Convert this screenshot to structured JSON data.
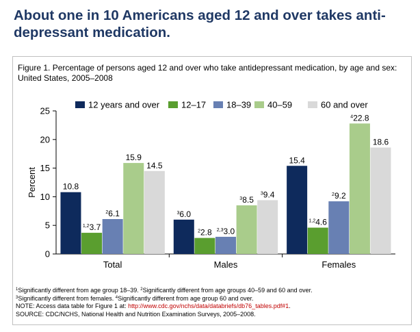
{
  "headline": "About one in 10 Americans aged 12 and over takes anti-depressant medication.",
  "caption": "Figure 1. Percentage of persons aged 12 and over who take antidepressant medication, by age and sex: United States, 2005–2008",
  "chart_data": {
    "type": "bar",
    "title": "Figure 1. Percentage of persons aged 12 and over who take antidepressant medication, by age and sex: United States, 2005–2008",
    "xlabel": "",
    "ylabel": "Percent",
    "ylim": [
      0,
      25
    ],
    "yticks": [
      0,
      5,
      10,
      15,
      20,
      25
    ],
    "grid": false,
    "legend_position": "top",
    "categories": [
      "Total",
      "Males",
      "Females"
    ],
    "series": [
      {
        "name": "12 years and over",
        "color": "#0e2a5c",
        "values": [
          10.8,
          6.0,
          15.4
        ],
        "labels": [
          "10.8",
          "6.0",
          "15.4"
        ],
        "marks": [
          "",
          "3",
          ""
        ]
      },
      {
        "name": "12–17",
        "color": "#5a9e2f",
        "values": [
          3.7,
          2.8,
          4.6
        ],
        "labels": [
          "3.7",
          "2.8",
          "4.6"
        ],
        "marks": [
          "1,2",
          "2",
          "1,2"
        ]
      },
      {
        "name": "18–39",
        "color": "#6880b3",
        "values": [
          6.1,
          3.0,
          9.2
        ],
        "labels": [
          "6.1",
          "3.0",
          "9.2"
        ],
        "marks": [
          "2",
          "2,3",
          "2"
        ]
      },
      {
        "name": "40–59",
        "color": "#a9cc8b",
        "values": [
          15.9,
          8.5,
          22.8
        ],
        "labels": [
          "15.9",
          "8.5",
          "22.8"
        ],
        "marks": [
          "",
          "3",
          "4"
        ]
      },
      {
        "name": "60 and over",
        "color": "#d9d9d9",
        "values": [
          14.5,
          9.4,
          18.6
        ],
        "labels": [
          "14.5",
          "9.4",
          "18.6"
        ],
        "marks": [
          "",
          "3",
          ""
        ]
      }
    ]
  },
  "notes": {
    "line1_mark1": "1",
    "line1_text1": "Significantly different from age group 18–39.  ",
    "line1_mark2": "2",
    "line1_text2": "Significantly different from age groups 40–59 and 60 and over.",
    "line2_mark1": "3",
    "line2_text1": "Significantly different from females.  ",
    "line2_mark2": "4",
    "line2_text2": "Significantly different from age group 60 and over.",
    "note_prefix": "NOTE: Access data table for Figure 1 at: ",
    "note_link": "http://www.cdc.gov/nchs/data/databriefs/db76_tables.pdf#1",
    "note_suffix": ".",
    "source": "SOURCE: CDC/NCHS, National Health and Nutrition Examination Surveys, 2005–2008."
  }
}
